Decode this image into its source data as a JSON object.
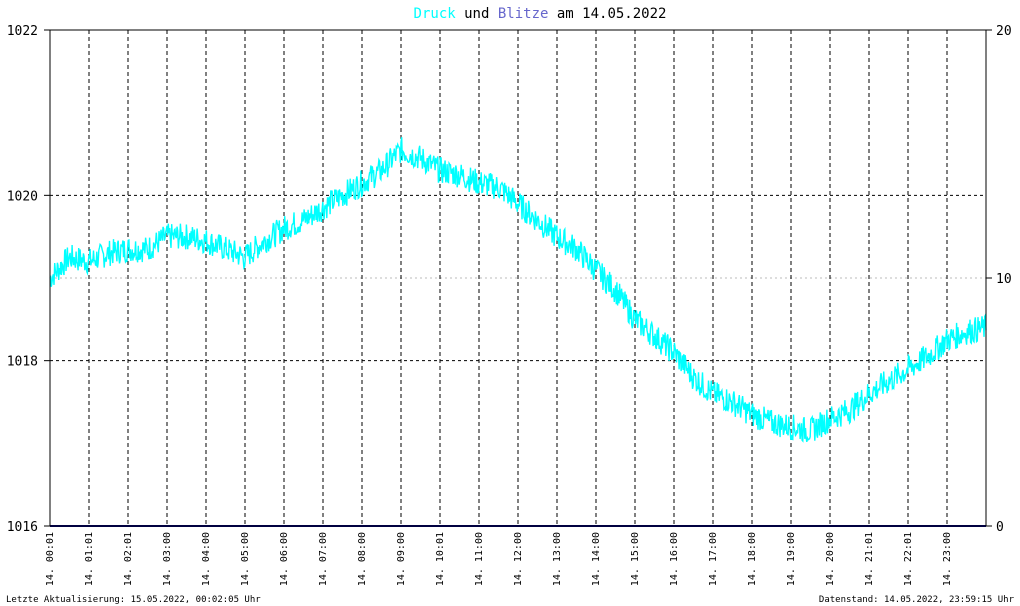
{
  "chart_data": {
    "type": "line",
    "title_parts": {
      "druck": "Druck",
      "und": "und",
      "blitze": "Blitze",
      "am": "am 14.05.2022"
    },
    "colors": {
      "druck": "#00FFFF",
      "blitze": "#6666CC",
      "title_text": "#000000",
      "frame": "#000000",
      "grid": "#000000",
      "hgrid_minor": "#BBBBBB",
      "baseline": "#000080"
    },
    "grid": true,
    "y_left": {
      "ticks": [
        1016,
        1018,
        1020,
        1022
      ],
      "range": [
        1016,
        1022
      ]
    },
    "y_right": {
      "ticks": [
        0,
        10,
        20
      ],
      "range": [
        0,
        20
      ]
    },
    "x_range_hours": [
      0,
      24
    ],
    "x_tick_labels": [
      "14. 00:01",
      "14. 01:01",
      "14. 02:01",
      "14. 03:00",
      "14. 04:00",
      "14. 05:00",
      "14. 06:00",
      "14. 07:00",
      "14. 08:00",
      "14. 09:00",
      "14. 10:01",
      "14. 11:00",
      "14. 12:00",
      "14. 13:00",
      "14. 14:00",
      "14. 15:00",
      "14. 16:00",
      "14. 17:00",
      "14. 18:00",
      "14. 19:00",
      "14. 20:00",
      "14. 21:01",
      "14. 22:01",
      "14. 23:00"
    ],
    "series": [
      {
        "name": "Druck",
        "axis": "left",
        "x_hours": [
          0,
          0.5,
          1,
          1.5,
          2,
          2.5,
          3,
          3.5,
          4,
          4.5,
          5,
          5.5,
          6,
          6.5,
          7,
          7.5,
          8,
          8.5,
          9,
          9.5,
          10,
          10.5,
          11,
          11.5,
          12,
          12.5,
          13,
          13.5,
          14,
          14.5,
          15,
          15.5,
          16,
          16.5,
          17,
          17.5,
          18,
          18.5,
          19,
          19.5,
          20,
          20.5,
          21,
          21.5,
          22,
          22.5,
          23,
          23.5,
          24
        ],
        "values": [
          1019.0,
          1019.25,
          1019.2,
          1019.3,
          1019.35,
          1019.35,
          1019.5,
          1019.5,
          1019.45,
          1019.35,
          1019.25,
          1019.45,
          1019.6,
          1019.7,
          1019.85,
          1020.0,
          1020.15,
          1020.3,
          1020.55,
          1020.45,
          1020.3,
          1020.25,
          1020.15,
          1020.1,
          1019.9,
          1019.7,
          1019.5,
          1019.35,
          1019.1,
          1018.85,
          1018.5,
          1018.3,
          1018.1,
          1017.8,
          1017.6,
          1017.5,
          1017.35,
          1017.25,
          1017.2,
          1017.15,
          1017.3,
          1017.4,
          1017.6,
          1017.75,
          1017.9,
          1018.05,
          1018.25,
          1018.35,
          1018.4
        ]
      },
      {
        "name": "Blitze",
        "axis": "right",
        "x_hours": [
          0,
          24
        ],
        "values": [
          0,
          0
        ]
      }
    ],
    "footer_left": "Letzte Aktualisierung: 15.05.2022, 00:02:05 Uhr",
    "footer_right": "Datenstand: 14.05.2022, 23:59:15 Uhr"
  }
}
